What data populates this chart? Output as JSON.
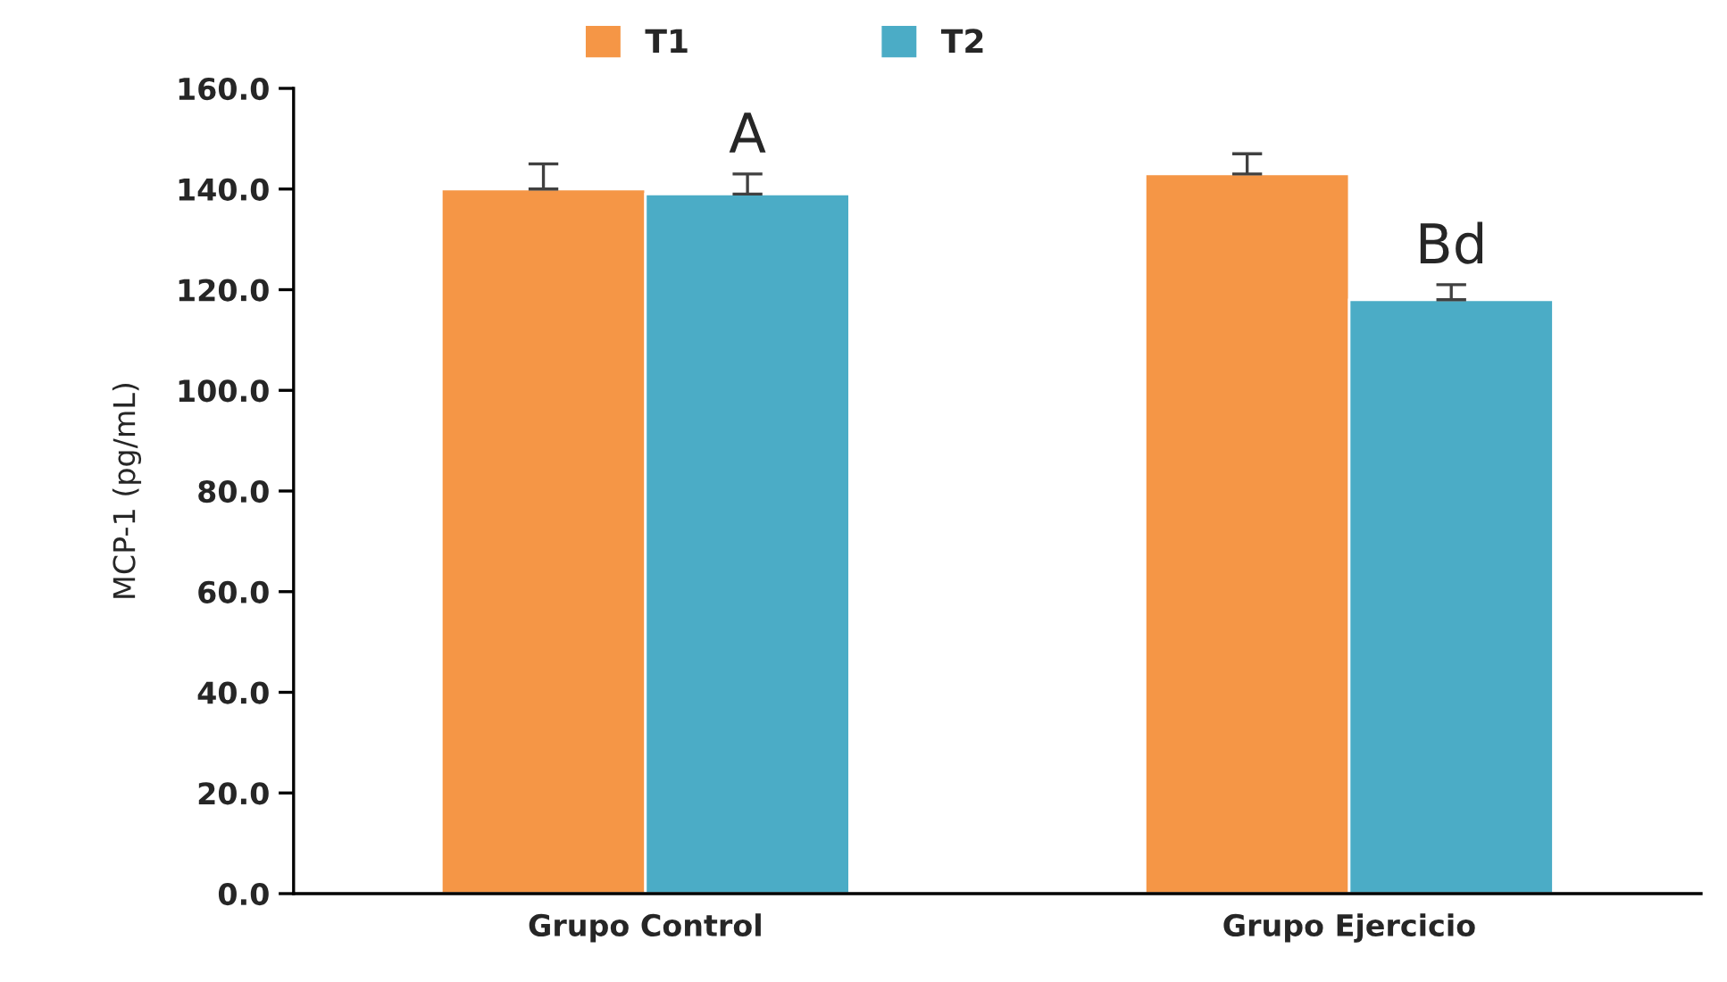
{
  "chart_data": {
    "type": "bar",
    "ylabel": "MCP-1 (pg/mL)",
    "categories": [
      "Grupo Control",
      "Grupo Ejercicio"
    ],
    "series": [
      {
        "name": "T1",
        "color": "#f59646",
        "values": [
          140,
          143
        ],
        "errors": [
          5,
          4
        ]
      },
      {
        "name": "T2",
        "color": "#4bacc6",
        "values": [
          139,
          118
        ],
        "errors": [
          4,
          3
        ]
      }
    ],
    "annotations": [
      "A",
      "Bd"
    ],
    "ylim": [
      0,
      160
    ],
    "yticks": [
      {
        "value": 0,
        "label": "0.0"
      },
      {
        "value": 20,
        "label": "20.0"
      },
      {
        "value": 40,
        "label": "40.0"
      },
      {
        "value": 60,
        "label": "60.0"
      },
      {
        "value": 80,
        "label": "80.0"
      },
      {
        "value": 100,
        "label": "100.0"
      },
      {
        "value": 120,
        "label": "120.0"
      },
      {
        "value": 140,
        "label": "140.0"
      },
      {
        "value": 160,
        "label": "160.0"
      }
    ],
    "legend": "top",
    "grid": false
  }
}
